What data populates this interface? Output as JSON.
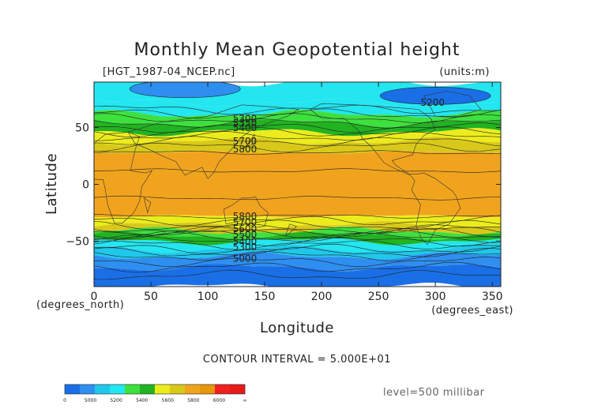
{
  "chart_data": {
    "type": "heatmap",
    "title": "Monthly Mean Geopotential height",
    "source_file": "[HGT_1987-04_NCEP.nc]",
    "units": "(units:m)",
    "xlabel": "Longitude",
    "ylabel": "Latitude",
    "x_unit_label": "(degrees_east)",
    "y_unit_label": "(degrees_north)",
    "x_ticks": [
      0,
      50,
      100,
      150,
      200,
      250,
      300,
      350
    ],
    "y_ticks": [
      50,
      0,
      -50
    ],
    "xlim": [
      0,
      357.5
    ],
    "ylim": [
      -90,
      90
    ],
    "contour_interval_text": "CONTOUR INTERVAL = 5.000E+01",
    "contour_interval": 50,
    "level_text": "level=500 millibar",
    "contour_labels": [
      {
        "text": "5300",
        "lon": 122,
        "lat": 55
      },
      {
        "text": "5350",
        "lon": 122,
        "lat": 51
      },
      {
        "text": "5400",
        "lon": 122,
        "lat": 47
      },
      {
        "text": "5700",
        "lon": 122,
        "lat": 35
      },
      {
        "text": "5800",
        "lon": 122,
        "lat": 28
      },
      {
        "text": "5200",
        "lon": 287,
        "lat": 69
      },
      {
        "text": "5800",
        "lon": 122,
        "lat": -31
      },
      {
        "text": "5700",
        "lon": 122,
        "lat": -36
      },
      {
        "text": "5600",
        "lon": 122,
        "lat": -42
      },
      {
        "text": "5500",
        "lon": 122,
        "lat": -47
      },
      {
        "text": "5400",
        "lon": 122,
        "lat": -53
      },
      {
        "text": "5300",
        "lon": 122,
        "lat": -58
      },
      {
        "text": "5000",
        "lon": 122,
        "lat": -68
      }
    ],
    "color_scale": {
      "tick_labels": [
        "0",
        "5000",
        "5200",
        "5400",
        "5600",
        "5800",
        "6000",
        "∞"
      ],
      "colors": [
        "#1a6fe6",
        "#2e8ff0",
        "#1fc8ea",
        "#23e6f0",
        "#3ee03e",
        "#21b321",
        "#ecec1c",
        "#d9c81a",
        "#f0a41e",
        "#e8960c",
        "#f02020",
        "#e61a1a"
      ]
    },
    "bands": [
      {
        "from_lat": 90,
        "to_lat": 72,
        "color": "#23e6f0"
      },
      {
        "from_lat": 72,
        "to_lat": 62,
        "color": "#23e6f0"
      },
      {
        "from_lat": 62,
        "to_lat": 54,
        "color": "#3ee03e"
      },
      {
        "from_lat": 54,
        "to_lat": 46,
        "color": "#21b321"
      },
      {
        "from_lat": 46,
        "to_lat": 38,
        "color": "#ecec1c"
      },
      {
        "from_lat": 38,
        "to_lat": 28,
        "color": "#d9c81a"
      },
      {
        "from_lat": 28,
        "to_lat": -28,
        "color": "#f0a41e"
      },
      {
        "from_lat": -28,
        "to_lat": -36,
        "color": "#ecec1c"
      },
      {
        "from_lat": -36,
        "to_lat": -41,
        "color": "#d9c81a"
      },
      {
        "from_lat": -41,
        "to_lat": -45,
        "color": "#3ee03e"
      },
      {
        "from_lat": -45,
        "to_lat": -50,
        "color": "#21b321"
      },
      {
        "from_lat": -50,
        "to_lat": -57,
        "color": "#23e6f0"
      },
      {
        "from_lat": -57,
        "to_lat": -63,
        "color": "#1fc8ea"
      },
      {
        "from_lat": -63,
        "to_lat": -73,
        "color": "#2e8ff0"
      },
      {
        "from_lat": -73,
        "to_lat": -90,
        "color": "#1a6fe6"
      }
    ],
    "low_centers": [
      {
        "lon": 300,
        "lat": 78,
        "color": "#1a6fe6"
      },
      {
        "lon": 80,
        "lat": 84,
        "color": "#2e8ff0"
      }
    ]
  }
}
